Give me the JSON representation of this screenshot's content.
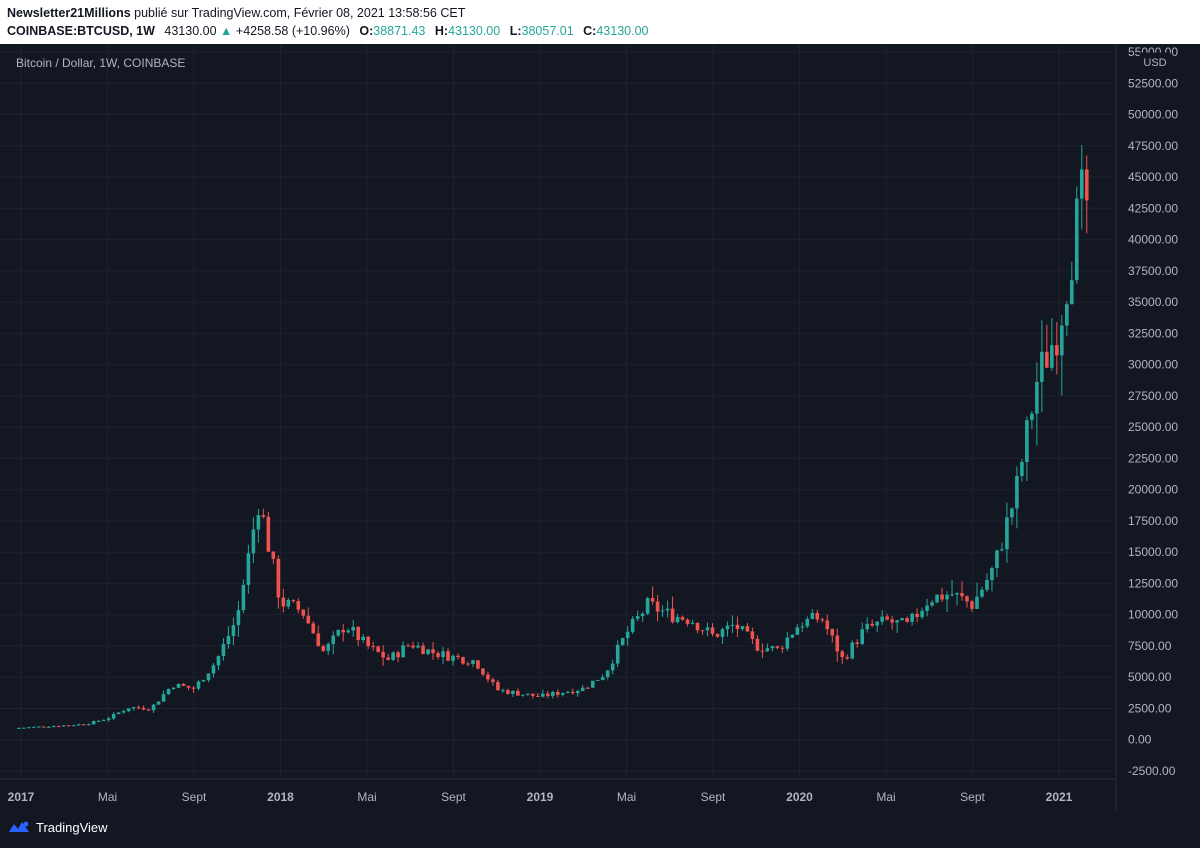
{
  "header": {
    "author": "Newsletter21Millions",
    "published_text": "publié sur TradingView.com, Février 08, 2021 13:58:56 CET",
    "symbol": "COINBASE:BTCUSD, 1W",
    "last": "43130.00",
    "change": "+4258.58 (+10.96%)",
    "open_label": "O:",
    "open": "38871.43",
    "high_label": "H:",
    "high": "43130.00",
    "low_label": "L:",
    "low": "38057.01",
    "close_label": "C:",
    "close": "43130.00"
  },
  "footer": {
    "brand": "TradingView",
    "logo_icon": "tradingview-logo-icon"
  },
  "colors": {
    "background": "#131722",
    "up": "#26a69a",
    "down": "#ef5350",
    "grid": "#1e2230",
    "text": "#b2b5be"
  },
  "chart_data": {
    "type": "candlestick",
    "title": "Bitcoin / Dollar, 1W, COINBASE",
    "currency": "USD",
    "ylim": [
      -3500,
      56000
    ],
    "y_ticks": [
      -2500,
      0,
      2500,
      5000,
      7500,
      10000,
      12500,
      15000,
      17500,
      20000,
      22500,
      25000,
      27500,
      30000,
      32500,
      35000,
      37500,
      40000,
      42500,
      45000,
      47500,
      50000,
      52500,
      55000
    ],
    "x_ticks": [
      {
        "label": "2017",
        "x": "2017-01"
      },
      {
        "label": "Mai",
        "x": "2017-05"
      },
      {
        "label": "Sept",
        "x": "2017-09"
      },
      {
        "label": "2018",
        "x": "2018-01"
      },
      {
        "label": "Mai",
        "x": "2018-05"
      },
      {
        "label": "Sept",
        "x": "2018-09"
      },
      {
        "label": "2019",
        "x": "2019-01"
      },
      {
        "label": "Mai",
        "x": "2019-05"
      },
      {
        "label": "Sept",
        "x": "2019-09"
      },
      {
        "label": "2020",
        "x": "2020-01"
      },
      {
        "label": "Mai",
        "x": "2020-05"
      },
      {
        "label": "Sept",
        "x": "2020-09"
      },
      {
        "label": "2021",
        "x": "2021-01"
      }
    ],
    "close_anchors": [
      [
        "2016-12",
        870
      ],
      [
        "2017-01",
        960
      ],
      [
        "2017-02",
        1050
      ],
      [
        "2017-03",
        1150
      ],
      [
        "2017-04",
        1250
      ],
      [
        "2017-05",
        1700
      ],
      [
        "2017-06",
        2600
      ],
      [
        "2017-07",
        2500
      ],
      [
        "2017-08",
        4400
      ],
      [
        "2017-09",
        4100
      ],
      [
        "2017-10",
        6200
      ],
      [
        "2017-11",
        9800
      ],
      [
        "2017-12",
        19200
      ],
      [
        "2018-01",
        11000
      ],
      [
        "2018-02",
        10300
      ],
      [
        "2018-03",
        7000
      ],
      [
        "2018-04",
        9200
      ],
      [
        "2018-05",
        7500
      ],
      [
        "2018-06",
        6400
      ],
      [
        "2018-07",
        7700
      ],
      [
        "2018-08",
        7000
      ],
      [
        "2018-09",
        6600
      ],
      [
        "2018-10",
        6300
      ],
      [
        "2018-11",
        4000
      ],
      [
        "2018-12",
        3700
      ],
      [
        "2019-01",
        3450
      ],
      [
        "2019-02",
        3800
      ],
      [
        "2019-03",
        4100
      ],
      [
        "2019-04",
        5300
      ],
      [
        "2019-05",
        8500
      ],
      [
        "2019-06",
        10800
      ],
      [
        "2019-07",
        10000
      ],
      [
        "2019-08",
        9600
      ],
      [
        "2019-09",
        8300
      ],
      [
        "2019-10",
        9200
      ],
      [
        "2019-11",
        7500
      ],
      [
        "2019-12",
        7200
      ],
      [
        "2020-01",
        9300
      ],
      [
        "2020-02",
        9800
      ],
      [
        "2020-03",
        6400
      ],
      [
        "2020-04",
        8800
      ],
      [
        "2020-05",
        9500
      ],
      [
        "2020-06",
        9100
      ],
      [
        "2020-07",
        11300
      ],
      [
        "2020-08",
        11700
      ],
      [
        "2020-09",
        10800
      ],
      [
        "2020-10",
        13800
      ],
      [
        "2020-11",
        19700
      ],
      [
        "2020-12",
        28900
      ],
      [
        "2021-01",
        33100
      ],
      [
        "2021-02",
        43130
      ]
    ],
    "last_close": 43130
  }
}
